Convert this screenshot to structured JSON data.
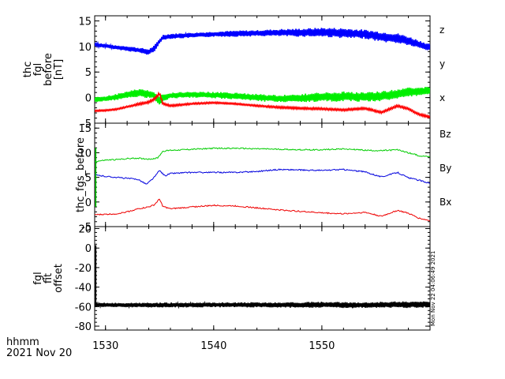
{
  "chart_data": [
    {
      "type": "line",
      "ylabel_lines": [
        "thc",
        "fgl",
        "before",
        "[nT]"
      ],
      "ylim": [
        -5,
        16
      ],
      "yticks": [
        -5,
        0,
        5,
        10,
        15
      ],
      "legend_placement": "right",
      "series": [
        {
          "name": "z",
          "color": "#0000ff",
          "style": "band",
          "x": [
            1529,
            1530,
            1531,
            1532,
            1533,
            1534,
            1534.5,
            1535,
            1535.3,
            1536,
            1538,
            1540,
            1542,
            1544,
            1546,
            1548,
            1550,
            1552,
            1554,
            1555.5,
            1557,
            1558,
            1559,
            1560
          ],
          "y": [
            10.4,
            10.1,
            9.8,
            9.6,
            9.3,
            8.9,
            9.6,
            11.0,
            11.8,
            12.0,
            12.2,
            12.4,
            12.5,
            12.6,
            12.7,
            12.7,
            12.8,
            12.6,
            12.4,
            11.9,
            11.6,
            11.1,
            10.4,
            9.8
          ],
          "band": [
            0.4,
            0.4,
            0.4,
            0.5,
            0.5,
            0.6,
            0.6,
            0.5,
            0.5,
            0.5,
            0.5,
            0.5,
            0.6,
            0.6,
            0.7,
            0.8,
            0.9,
            1.0,
            0.9,
            1.0,
            1.0,
            0.9,
            0.8,
            0.7
          ]
        },
        {
          "name": "y",
          "color": "#00ee00",
          "style": "band",
          "x": [
            1529,
            1530,
            1531,
            1532,
            1533,
            1534,
            1534.5,
            1535,
            1535.3,
            1536,
            1538,
            1540,
            1542,
            1544,
            1546,
            1548,
            1550,
            1552,
            1554,
            1555.5,
            1557,
            1558,
            1559,
            1560
          ],
          "y": [
            -0.4,
            -0.2,
            0.1,
            0.6,
            0.9,
            0.7,
            0.5,
            -0.8,
            0.0,
            0.4,
            0.6,
            0.5,
            0.3,
            0.0,
            -0.2,
            -0.1,
            0.1,
            0.2,
            0.1,
            0.3,
            0.7,
            1.1,
            1.2,
            1.3
          ],
          "band": [
            0.5,
            0.5,
            0.6,
            0.7,
            0.8,
            0.8,
            0.8,
            0.9,
            0.8,
            0.6,
            0.6,
            0.6,
            0.7,
            0.7,
            0.7,
            0.8,
            0.9,
            1.0,
            0.9,
            1.0,
            1.0,
            0.9,
            0.9,
            0.8
          ]
        },
        {
          "name": "x",
          "color": "#ff0000",
          "style": "band",
          "x": [
            1529,
            1530,
            1531,
            1532,
            1533,
            1534,
            1534.5,
            1535,
            1535.3,
            1536,
            1538,
            1540,
            1542,
            1544,
            1546,
            1548,
            1550,
            1552,
            1554,
            1555.5,
            1557,
            1558,
            1559,
            1560
          ],
          "y": [
            -2.6,
            -2.5,
            -2.3,
            -1.8,
            -1.3,
            -0.9,
            -0.3,
            0.8,
            -1.2,
            -1.6,
            -1.2,
            -1.0,
            -1.2,
            -1.6,
            -1.9,
            -2.1,
            -2.2,
            -2.4,
            -2.1,
            -2.9,
            -1.6,
            -2.2,
            -3.3,
            -3.8
          ],
          "band": [
            0.15,
            0.15,
            0.15,
            0.15,
            0.2,
            0.2,
            0.3,
            0.3,
            0.2,
            0.2,
            0.15,
            0.15,
            0.15,
            0.15,
            0.2,
            0.2,
            0.2,
            0.2,
            0.2,
            0.2,
            0.2,
            0.2,
            0.2,
            0.2
          ]
        }
      ]
    },
    {
      "type": "line",
      "ylabel_lines": [
        "thc_fgs_before"
      ],
      "ylim": [
        -5,
        16
      ],
      "yticks": [
        -5,
        0,
        5,
        10,
        15
      ],
      "legend_placement": "right",
      "series": [
        {
          "name": "Bz",
          "color": "#00cc00",
          "style": "line",
          "x": [
            1529,
            1530,
            1531,
            1532,
            1533,
            1534,
            1534.8,
            1535.3,
            1536,
            1538,
            1540,
            1542,
            1544,
            1546,
            1548,
            1550,
            1552,
            1554,
            1555.5,
            1557,
            1558,
            1559,
            1560
          ],
          "y": [
            8.2,
            8.5,
            8.6,
            8.8,
            8.9,
            8.7,
            8.9,
            10.3,
            10.5,
            10.7,
            10.9,
            10.9,
            10.8,
            10.7,
            10.6,
            10.6,
            10.8,
            10.5,
            10.4,
            10.6,
            10.0,
            9.4,
            9.2
          ]
        },
        {
          "name": "By",
          "color": "#0000dd",
          "style": "line",
          "x": [
            1529,
            1530,
            1531,
            1532,
            1533,
            1533.8,
            1534.5,
            1535,
            1535.5,
            1536,
            1538,
            1540,
            1542,
            1544,
            1546,
            1548,
            1550,
            1552,
            1554,
            1555.5,
            1557,
            1558,
            1559,
            1560
          ],
          "y": [
            5.5,
            5.2,
            5.0,
            4.8,
            4.6,
            3.6,
            5.0,
            6.4,
            5.3,
            5.8,
            6.0,
            6.0,
            6.0,
            6.2,
            6.6,
            6.5,
            6.4,
            6.6,
            6.1,
            5.1,
            6.0,
            4.9,
            4.4,
            3.8
          ]
        },
        {
          "name": "Bx",
          "color": "#ee0000",
          "style": "line",
          "x": [
            1529,
            1530,
            1531,
            1532,
            1533,
            1534,
            1534.5,
            1535,
            1535.3,
            1536,
            1538,
            1540,
            1542,
            1544,
            1546,
            1548,
            1550,
            1552,
            1554,
            1555.5,
            1557,
            1558,
            1559,
            1560
          ],
          "y": [
            -2.6,
            -2.5,
            -2.4,
            -2.0,
            -1.4,
            -1.0,
            -0.6,
            0.6,
            -0.9,
            -1.4,
            -1.0,
            -0.7,
            -0.8,
            -1.2,
            -1.6,
            -1.9,
            -2.2,
            -2.4,
            -2.1,
            -2.9,
            -1.7,
            -2.3,
            -3.3,
            -3.8
          ]
        }
      ]
    },
    {
      "type": "line",
      "ylabel_lines": [
        "fgl",
        "fit",
        "offset"
      ],
      "ylim": [
        -84,
        22
      ],
      "yticks": [
        -80,
        -60,
        -40,
        -20,
        0,
        20
      ],
      "series": [
        {
          "name": "",
          "color": "#000000",
          "style": "band",
          "x": [
            1529,
            1529.2,
            1530,
            1532,
            1534,
            1536,
            1538,
            1540,
            1542,
            1544,
            1546,
            1548,
            1550,
            1552,
            1554,
            1556,
            1558,
            1560
          ],
          "y": [
            -58,
            -58,
            -58.3,
            -58.4,
            -58.5,
            -58.3,
            -58.4,
            -58.2,
            -58.1,
            -58.2,
            -58.4,
            -58.2,
            -58.0,
            -58.6,
            -58.3,
            -58.1,
            -58.0,
            -57.8
          ],
          "band": [
            2.0,
            2.0,
            2.2,
            2.2,
            2.5,
            2.4,
            2.4,
            2.4,
            2.5,
            2.6,
            2.7,
            2.8,
            3.0,
            3.2,
            3.0,
            3.2,
            3.4,
            3.0
          ]
        }
      ],
      "spike": {
        "x": 1529.1,
        "ymin": -60,
        "ymax": 3
      }
    }
  ],
  "x_axis": {
    "xlim": [
      1529,
      1560
    ],
    "ticks": [
      1530,
      1540,
      1550
    ],
    "tick_labels": [
      "1530",
      "1540",
      "1550"
    ],
    "label_line1": "hhmm",
    "label_line2": "2021 Nov 20"
  },
  "stamp": "Mon Nov 22 04:06:49 2021"
}
